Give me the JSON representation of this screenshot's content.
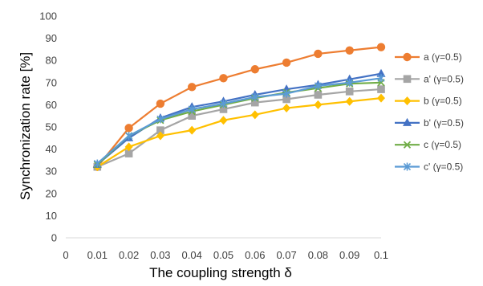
{
  "chart_data": {
    "type": "line",
    "title": "",
    "xlabel": "The coupling strength δ",
    "ylabel": "Synchronization rate [%]",
    "x_ticks": [
      "0",
      "0.01",
      "0.02",
      "0.03",
      "0.04",
      "0.05",
      "0.06",
      "0.07",
      "0.08",
      "0.09",
      "0.1"
    ],
    "y_ticks": [
      "0",
      "10",
      "20",
      "30",
      "40",
      "50",
      "60",
      "70",
      "80",
      "90",
      "100"
    ],
    "x": [
      0.01,
      0.02,
      0.03,
      0.04,
      0.05,
      0.06,
      0.07,
      0.08,
      0.09,
      0.1
    ],
    "xlim": [
      0,
      0.1
    ],
    "ylim": [
      0,
      100
    ],
    "grid": "none",
    "legend_position": "right",
    "series": [
      {
        "name": "a (γ=0.5)",
        "color": "#ED7D31",
        "marker": "circle",
        "values": [
          32,
          49.5,
          60.5,
          68,
          72,
          76,
          79,
          83,
          84.5,
          86
        ]
      },
      {
        "name": "a' (γ=0.5)",
        "color": "#A5A5A5",
        "marker": "square",
        "values": [
          32,
          38,
          48.5,
          55,
          58,
          61,
          62.5,
          64.5,
          66,
          67
        ]
      },
      {
        "name": "b (γ=0.5)",
        "color": "#FFC000",
        "marker": "diamond",
        "values": [
          32,
          41,
          46,
          48.5,
          53,
          55.5,
          58.5,
          60,
          61.5,
          63
        ]
      },
      {
        "name": "b' (γ=0.5)",
        "color": "#4472C4",
        "marker": "triangle",
        "values": [
          33,
          45,
          54,
          59,
          61.5,
          64.5,
          67,
          69,
          71.5,
          74
        ]
      },
      {
        "name": "c (γ=0.5)",
        "color": "#70AD47",
        "marker": "x",
        "values": [
          33,
          46,
          53,
          57,
          60,
          63,
          65.5,
          67.5,
          69.5,
          70
        ]
      },
      {
        "name": "c' (γ=0.5)",
        "color": "#5B9BD5",
        "marker": "star",
        "values": [
          33.5,
          46,
          53.5,
          58,
          60.5,
          63.5,
          65,
          68.5,
          70,
          72
        ]
      }
    ]
  }
}
